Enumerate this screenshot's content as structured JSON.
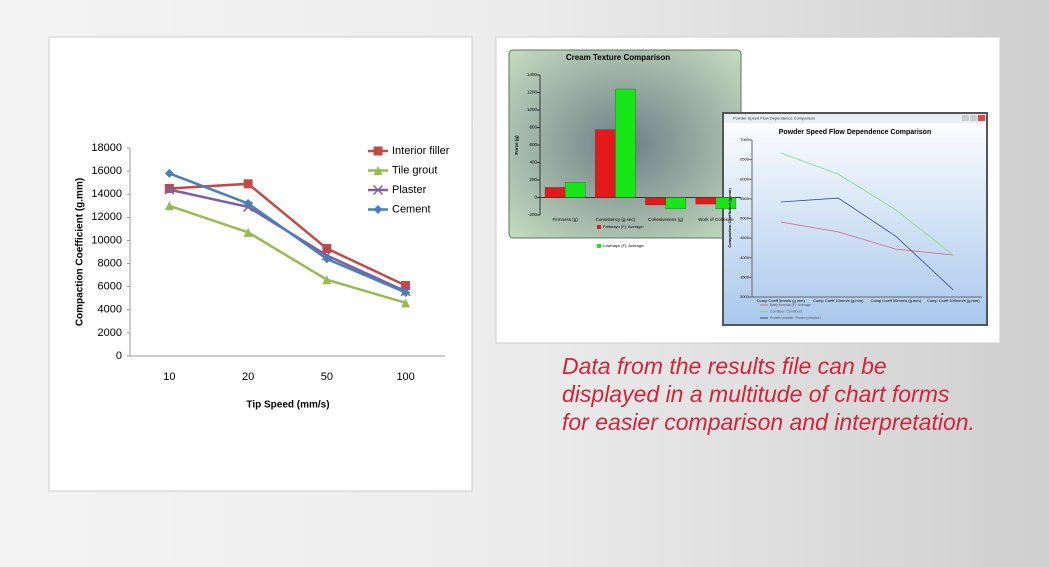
{
  "chart_data": [
    {
      "type": "line",
      "x_label": "Tip Speed (mm/s)",
      "y_label": "Compaction Coefficient (g.mm)",
      "categories": [
        "10",
        "20",
        "50",
        "100"
      ],
      "series": [
        {
          "name": "Interior filler",
          "color": "#be4b48",
          "values": [
            14500,
            14900,
            9300,
            6100
          ]
        },
        {
          "name": "Tile grout",
          "color": "#98b954",
          "values": [
            13000,
            10700,
            6600,
            4600
          ]
        },
        {
          "name": "Plaster",
          "color": "#7d60a0",
          "values": [
            14400,
            12900,
            8700,
            5600
          ]
        },
        {
          "name": "Cement",
          "color": "#4a7ebb",
          "values": [
            15800,
            13200,
            8400,
            5500
          ]
        }
      ],
      "ylim": [
        0,
        18000
      ],
      "yticks": [
        0,
        2000,
        4000,
        6000,
        8000,
        10000,
        12000,
        14000,
        16000,
        18000
      ],
      "grid": false
    },
    {
      "type": "bar",
      "title": "Cream Texture Comparison",
      "y_label": "Force (g)",
      "categories": [
        "Firmness (g)",
        "Consistency (g.sec)",
        "Cohesiveness (g)",
        "Work of Cohesive"
      ],
      "series": [
        {
          "name": "Fattmayo (F): Average:",
          "color": "#e31a1c",
          "values": [
            115,
            775,
            -85,
            -75
          ]
        },
        {
          "name": "Lowmayo (F): Average:",
          "color": "#19e619",
          "values": [
            175,
            1240,
            -130,
            -130
          ]
        }
      ],
      "ylim": [
        -200,
        1400
      ],
      "yticks": [
        -200,
        0,
        200,
        400,
        600,
        800,
        1000,
        1200,
        1400
      ],
      "grid": false
    },
    {
      "type": "line",
      "window_title": "Powder Speed Flow Dependence Comparison",
      "title": "Powder Speed Flow Dependence Comparison",
      "y_label": "Compaction Coefficient (g.mm)",
      "categories": [
        "Comp Coeff 5mm/s (g.mm)",
        "Comp Coeff 10mm/s (g.mm)",
        "Comp Coeff 50mm/s (g.mm)",
        "Comp Coeff 100mm/s (g.mm)"
      ],
      "series": [
        {
          "name": "Baby formula (F): Average",
          "color": "#d9608a",
          "values": [
            4910,
            4660,
            4220,
            4070
          ]
        },
        {
          "name": "Cornflour: Cornflour1",
          "color": "#7de07d",
          "values": [
            6670,
            6130,
            5220,
            4070
          ]
        },
        {
          "name": "Protein powder: Protein powder1",
          "color": "#3a4a8a",
          "values": [
            5420,
            5520,
            4550,
            3180
          ]
        }
      ],
      "ylim": [
        3000,
        7000
      ],
      "yticks": [
        3000,
        3500,
        4000,
        4500,
        5000,
        5500,
        6000,
        6500,
        7000
      ],
      "grid": false
    }
  ],
  "caption": "Data from the results file can be displayed in a multitude of chart forms for easier comparison and interpretation."
}
